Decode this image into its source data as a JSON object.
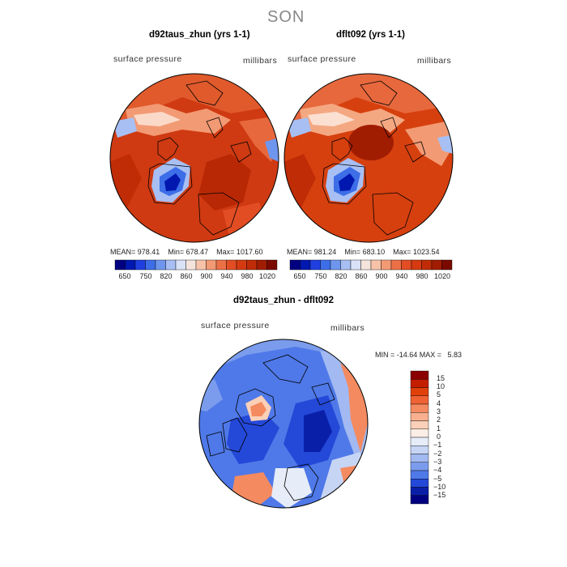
{
  "page_title": "SON",
  "panels": [
    {
      "title": "d92taus_zhun (yrs 1-1)",
      "variable_label": "surface pressure",
      "units_label": "millibars",
      "stats": {
        "mean_label": "MEAN=",
        "mean": "978.41",
        "min_label": "Min=",
        "min": "678.47",
        "max_label": "Max=",
        "max": "1017.60"
      }
    },
    {
      "title": "dflt092 (yrs 1-1)",
      "variable_label": "surface pressure",
      "units_label": "millibars",
      "stats": {
        "mean_label": "MEAN=",
        "mean": "981.24",
        "min_label": "Min=",
        "min": "683.10",
        "max_label": "Max=",
        "max": "1023.54"
      }
    },
    {
      "title": "d92taus_zhun - dflt092",
      "variable_label": "surface pressure",
      "units_label": "millibars",
      "minmax_text": "MIN = -14.64 MAX =   5.83"
    }
  ],
  "colorbar_horizontal": {
    "ticks": [
      "650",
      "750",
      "820",
      "860",
      "900",
      "940",
      "980",
      "1020"
    ],
    "colors": [
      "#000080",
      "#0018b0",
      "#1f3fe0",
      "#3d6ee8",
      "#6f96ee",
      "#a7bff3",
      "#d9e2f7",
      "#f4e4dc",
      "#f6c3a9",
      "#f29a74",
      "#ec7046",
      "#e24d24",
      "#d53a10",
      "#bf2c05",
      "#a11d02",
      "#7a0a00"
    ]
  },
  "colorbar_vertical": {
    "labels": [
      "15",
      "10",
      "5",
      "4",
      "3",
      "2",
      "1",
      "0",
      "−1",
      "−2",
      "−3",
      "−4",
      "−5",
      "−10",
      "−15"
    ],
    "colors": [
      "#8b0000",
      "#c41e00",
      "#e0400a",
      "#ef6233",
      "#f48a60",
      "#f8b08e",
      "#fbd0b8",
      "#fceee6",
      "#e6ecf8",
      "#c7d5f5",
      "#a2b9f1",
      "#7b9ced",
      "#4f79e8",
      "#2448d8",
      "#0a1fa8",
      "#000080"
    ]
  }
}
